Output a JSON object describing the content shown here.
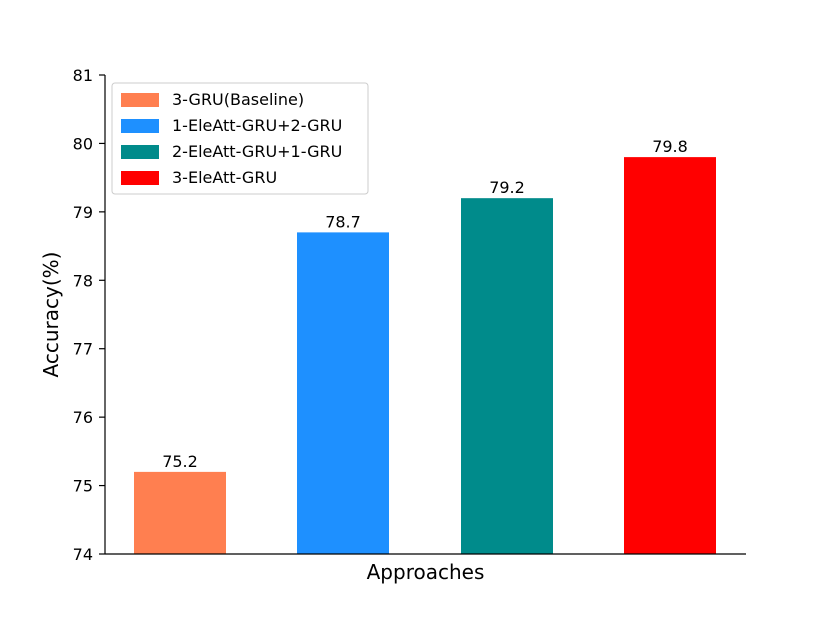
{
  "chart_data": {
    "type": "bar",
    "categories": [
      "3-GRU(Baseline)",
      "1-EleAtt-GRU+2-GRU",
      "2-EleAtt-GRU+1-GRU",
      "3-EleAtt-GRU"
    ],
    "values": [
      75.2,
      78.7,
      79.2,
      79.8
    ],
    "value_labels": [
      "75.2",
      "78.7",
      "79.2",
      "79.8"
    ],
    "colors": [
      "#FF7F50",
      "#1E90FF",
      "#008B8B",
      "#FF0000"
    ],
    "xlabel": "Approaches",
    "ylabel": "Accuracy(%)",
    "ylim": [
      74,
      81
    ],
    "yticks": [
      74,
      75,
      76,
      77,
      78,
      79,
      80,
      81
    ],
    "ytick_labels": [
      "74",
      "75",
      "76",
      "77",
      "78",
      "79",
      "80",
      "81"
    ],
    "grid": false,
    "legend": {
      "placement": "upper-left",
      "entries": [
        "3-GRU(Baseline)",
        "1-EleAtt-GRU+2-GRU",
        "2-EleAtt-GRU+1-GRU",
        "3-EleAtt-GRU"
      ]
    }
  }
}
